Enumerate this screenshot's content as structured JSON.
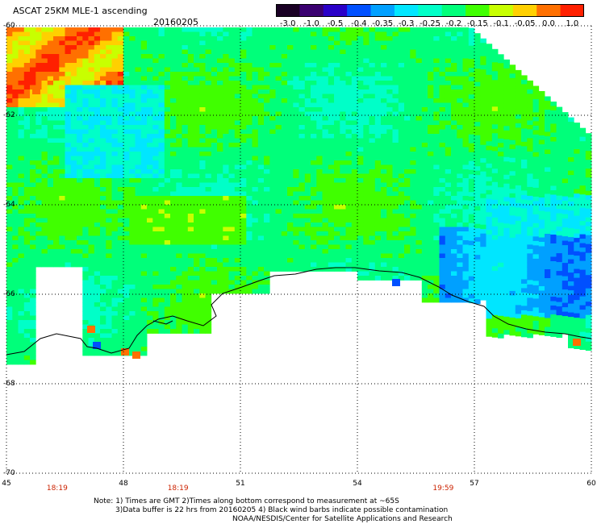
{
  "header": {
    "title": "ASCAT 25KM MLE-1 ascending",
    "date": "20160205"
  },
  "colorbar": {
    "labels": [
      "-3.0",
      "-1.0",
      "-0.5",
      "-0.4",
      "-0.35",
      "-0.3",
      "-0.25",
      "-0.2",
      "-0.15",
      "-0.1",
      "-0.05",
      "0.0",
      "1.0"
    ],
    "colors": [
      "#1a0024",
      "#3a0070",
      "#2a00c8",
      "#0050ff",
      "#00a0ff",
      "#00e6ff",
      "#00ffc8",
      "#00ff7a",
      "#40ff00",
      "#c8ff00",
      "#ffd000",
      "#ff7000",
      "#ff2000"
    ]
  },
  "axes": {
    "lat_labels": [
      "-60",
      "-62",
      "-64",
      "-66",
      "-68",
      "-70"
    ],
    "lat_values": [
      -60,
      -62,
      -64,
      -66,
      -68,
      -70
    ],
    "lon_labels": [
      "45",
      "48",
      "51",
      "54",
      "57",
      "60"
    ],
    "lon_values": [
      45,
      48,
      51,
      54,
      57,
      60
    ],
    "times": [
      {
        "text": "18:19",
        "lon": 46.3
      },
      {
        "text": "18:19",
        "lon": 49.4
      },
      {
        "text": "19:59",
        "lon": 56.2
      }
    ]
  },
  "notes": {
    "line1": "Note: 1) Times are GMT 2)Times along bottom correspond to measurement at ~65S",
    "line2": "3)Data buffer is 22 hrs from 20160205 4) Black wind barbs indicate possible contamination",
    "line3": "NOAA/NESDIS/Center for Satellite Applications and Research"
  }
}
